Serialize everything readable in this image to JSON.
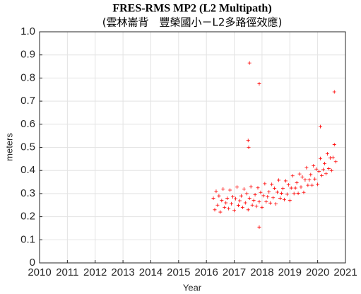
{
  "chart_data": {
    "type": "scatter",
    "title": "FRES-RMS MP2 (L2 Multipath)",
    "subtitle": "(雲林崙背　豐榮國小－L2多路徑效應)",
    "x_label": "Year",
    "y_label": "meters",
    "xlim": [
      2010,
      2021
    ],
    "ylim": [
      0,
      1
    ],
    "xticks": [
      2010,
      2011,
      2012,
      2013,
      2014,
      2015,
      2016,
      2017,
      2018,
      2019,
      2020,
      2021
    ],
    "yticks": [
      {
        "value": 0,
        "label": "0"
      },
      {
        "value": 0.1,
        "label": "0.1"
      },
      {
        "value": 0.2,
        "label": "0.2"
      },
      {
        "value": 0.3,
        "label": "0.3"
      },
      {
        "value": 0.4,
        "label": "0.4"
      },
      {
        "value": 0.5,
        "label": "0.5"
      },
      {
        "value": 0.6,
        "label": "0.6"
      },
      {
        "value": 0.7,
        "label": "0.7"
      },
      {
        "value": 0.8,
        "label": "0.8"
      },
      {
        "value": 0.9,
        "label": "0.9"
      },
      {
        "value": 1,
        "label": "1.0"
      }
    ],
    "grid": true,
    "color": "#ff0000",
    "x": [
      2016.25,
      2016.3,
      2016.35,
      2016.4,
      2016.45,
      2016.5,
      2016.55,
      2016.6,
      2016.65,
      2016.7,
      2016.75,
      2016.8,
      2016.85,
      2016.9,
      2016.95,
      2017,
      2017.05,
      2017.1,
      2017.15,
      2017.2,
      2017.25,
      2017.3,
      2017.35,
      2017.4,
      2017.45,
      2017.5,
      2017.55,
      2017.6,
      2017.65,
      2017.7,
      2017.75,
      2017.8,
      2017.85,
      2017.9,
      2017.95,
      2018,
      2018.05,
      2018.1,
      2018.15,
      2018.2,
      2018.25,
      2018.3,
      2018.35,
      2018.4,
      2018.45,
      2018.5,
      2018.55,
      2018.6,
      2018.65,
      2018.7,
      2018.75,
      2018.8,
      2018.85,
      2018.9,
      2018.95,
      2019,
      2019.05,
      2019.1,
      2019.15,
      2019.2,
      2019.25,
      2019.3,
      2019.35,
      2019.4,
      2019.45,
      2019.5,
      2019.55,
      2019.6,
      2019.65,
      2019.7,
      2019.75,
      2019.8,
      2019.85,
      2019.9,
      2019.95,
      2020,
      2020.05,
      2020.1,
      2020.15,
      2020.2,
      2020.25,
      2020.3,
      2020.35,
      2020.4,
      2020.45,
      2020.5,
      2020.55,
      2020.6,
      2020.65,
      2017.55,
      2017.9,
      2020.6,
      2017.5,
      2017.52,
      2017.9,
      2020.1
    ],
    "values": [
      0.28,
      0.23,
      0.31,
      0.25,
      0.29,
      0.22,
      0.27,
      0.32,
      0.24,
      0.26,
      0.28,
      0.235,
      0.315,
      0.256,
      0.286,
      0.227,
      0.278,
      0.328,
      0.249,
      0.269,
      0.29,
      0.24,
      0.32,
      0.26,
      0.3,
      0.23,
      0.28,
      0.33,
      0.25,
      0.27,
      0.295,
      0.245,
      0.325,
      0.265,
      0.305,
      0.24,
      0.291,
      0.343,
      0.265,
      0.286,
      0.307,
      0.259,
      0.34,
      0.282,
      0.323,
      0.255,
      0.306,
      0.358,
      0.28,
      0.301,
      0.322,
      0.274,
      0.355,
      0.297,
      0.338,
      0.27,
      0.324,
      0.377,
      0.3,
      0.324,
      0.347,
      0.301,
      0.385,
      0.328,
      0.372,
      0.305,
      0.359,
      0.412,
      0.336,
      0.359,
      0.382,
      0.336,
      0.42,
      0.363,
      0.406,
      0.34,
      0.396,
      0.452,
      0.378,
      0.404,
      0.43,
      0.386,
      0.472,
      0.408,
      0.454,
      0.4,
      0.456,
      0.512,
      0.438,
      0.865,
      0.775,
      0.74,
      0.53,
      0.5,
      0.155,
      0.59
    ]
  }
}
